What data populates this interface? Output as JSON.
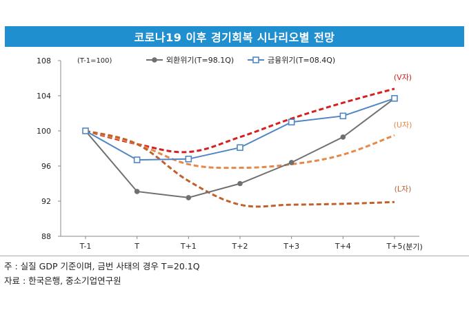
{
  "chart_data": {
    "type": "line",
    "title": "코로나19 이후 경기회복 시나리오별 전망",
    "base_note": "(T-1=100)",
    "x_unit": "(분기)",
    "categories": [
      "T-1",
      "T",
      "T+1",
      "T+2",
      "T+3",
      "T+4",
      "T+5"
    ],
    "ylim": [
      88,
      108
    ],
    "yticks": [
      "88",
      "92",
      "96",
      "100",
      "104",
      "108"
    ],
    "series": [
      {
        "name": "외환위기(T=98.1Q)",
        "values": [
          100,
          93.1,
          92.4,
          94.0,
          96.4,
          99.3,
          103.7
        ],
        "color": "#707070",
        "marker": "circle"
      },
      {
        "name": "금융위기(T=08.4Q)",
        "values": [
          100,
          96.7,
          96.8,
          98.1,
          101.0,
          101.7,
          103.7
        ],
        "color": "#4f86c6",
        "marker": "square"
      }
    ],
    "scenarios": [
      {
        "label": "(V자)",
        "values": [
          100,
          98.5,
          97.6,
          99.3,
          101.4,
          103.2,
          104.8
        ],
        "color": "#d42020"
      },
      {
        "label": "(U자)",
        "values": [
          100,
          98.5,
          96.2,
          95.8,
          96.2,
          97.3,
          99.5
        ],
        "color": "#e5884a"
      },
      {
        "label": "(L자)",
        "values": [
          100,
          98.5,
          94.3,
          91.6,
          91.6,
          91.7,
          91.9
        ],
        "color": "#c0602a"
      }
    ]
  },
  "notes": {
    "note": "주 : 실질 GDP 기준이며, 금번 사태의 경우 T=20.1Q",
    "source": "자료 : 한국은행, 중소기업연구원"
  }
}
